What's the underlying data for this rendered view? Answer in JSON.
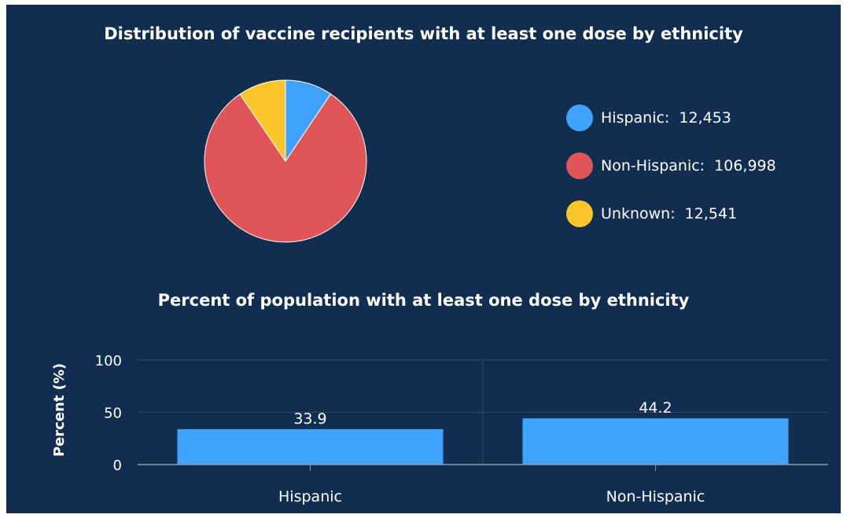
{
  "chart_data": [
    {
      "type": "pie",
      "title": "Distribution of vaccine recipients with at least one dose by ethnicity",
      "slices": [
        {
          "label": "Hispanic",
          "value": 12453,
          "display": "12,453",
          "color": "#3fa3fb"
        },
        {
          "label": "Non-Hispanic",
          "value": 106998,
          "display": "106,998",
          "color": "#df5558"
        },
        {
          "label": "Unknown",
          "value": 12541,
          "display": "12,541",
          "color": "#fdc52c"
        }
      ],
      "legend_position": "right"
    },
    {
      "type": "bar",
      "title": "Percent of population with at least one dose by ethnicity",
      "categories": [
        "Hispanic",
        "Non-Hispanic"
      ],
      "values": [
        33.9,
        44.2
      ],
      "value_labels": [
        "33.9",
        "44.2"
      ],
      "ylabel": "Percent (%)",
      "ylim": [
        0,
        100
      ],
      "yticks": [
        "0",
        "50",
        "100"
      ],
      "bar_color": "#3fa3fb",
      "grid": true
    }
  ]
}
